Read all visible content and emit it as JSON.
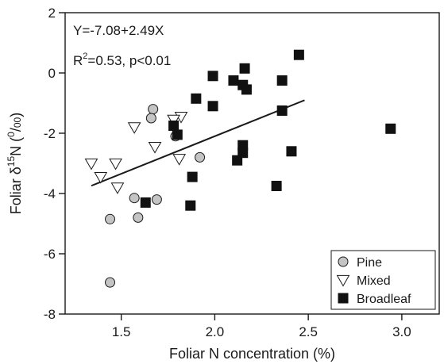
{
  "chart_data": {
    "type": "scatter",
    "xlabel": "Foliar N concentration (%)",
    "ylabel_parts": {
      "prefix": "Foliar δ",
      "sup": "15",
      "mid": "N (",
      "sup2": "0",
      "slash": "/",
      "sub": "00",
      "suffix": ")"
    },
    "xlim": [
      1.2,
      3.2
    ],
    "ylim": [
      -8,
      2
    ],
    "xticks": [
      1.5,
      2.0,
      2.5,
      3.0
    ],
    "xtick_labels": [
      "1.5",
      "2.0",
      "2.5",
      "3.0"
    ],
    "yticks": [
      -8,
      -6,
      -4,
      -2,
      0,
      2
    ],
    "ytick_labels": [
      "-8",
      "-6",
      "-4",
      "-2",
      "0",
      "2"
    ],
    "grid": false,
    "legend_position": "bottom-right",
    "annotations": {
      "equation": "Y=-7.08+2.49X",
      "r2_prefix": "R",
      "r2_sup": "2",
      "r2_suffix": "=0.53, p<0.01"
    },
    "regression": {
      "intercept": -7.08,
      "slope": 2.49,
      "x_range": [
        1.34,
        2.48
      ]
    },
    "series": [
      {
        "name": "Pine",
        "marker": "circle",
        "points": [
          [
            1.67,
            -1.2
          ],
          [
            1.66,
            -1.5
          ],
          [
            1.79,
            -2.1
          ],
          [
            1.92,
            -2.8
          ],
          [
            1.57,
            -4.15
          ],
          [
            1.69,
            -4.2
          ],
          [
            1.59,
            -4.8
          ],
          [
            1.44,
            -4.85
          ],
          [
            1.44,
            -6.95
          ]
        ]
      },
      {
        "name": "Mixed",
        "marker": "triangle-down",
        "points": [
          [
            1.57,
            -1.8
          ],
          [
            1.82,
            -1.45
          ],
          [
            1.78,
            -1.55
          ],
          [
            1.68,
            -2.45
          ],
          [
            1.34,
            -3.0
          ],
          [
            1.47,
            -3.0
          ],
          [
            1.39,
            -3.45
          ],
          [
            1.81,
            -2.85
          ],
          [
            1.48,
            -3.8
          ]
        ]
      },
      {
        "name": "Broadleaf",
        "marker": "square",
        "points": [
          [
            2.45,
            0.6
          ],
          [
            2.16,
            0.15
          ],
          [
            1.99,
            -0.1
          ],
          [
            2.1,
            -0.25
          ],
          [
            2.15,
            -0.4
          ],
          [
            2.17,
            -0.55
          ],
          [
            2.36,
            -0.25
          ],
          [
            1.9,
            -0.85
          ],
          [
            1.99,
            -1.1
          ],
          [
            2.36,
            -1.25
          ],
          [
            1.78,
            -1.75
          ],
          [
            2.94,
            -1.85
          ],
          [
            1.8,
            -2.05
          ],
          [
            2.15,
            -2.4
          ],
          [
            2.41,
            -2.6
          ],
          [
            2.15,
            -2.65
          ],
          [
            2.12,
            -2.9
          ],
          [
            1.88,
            -3.45
          ],
          [
            2.33,
            -3.75
          ],
          [
            1.63,
            -4.3
          ],
          [
            1.87,
            -4.4
          ]
        ]
      }
    ]
  }
}
